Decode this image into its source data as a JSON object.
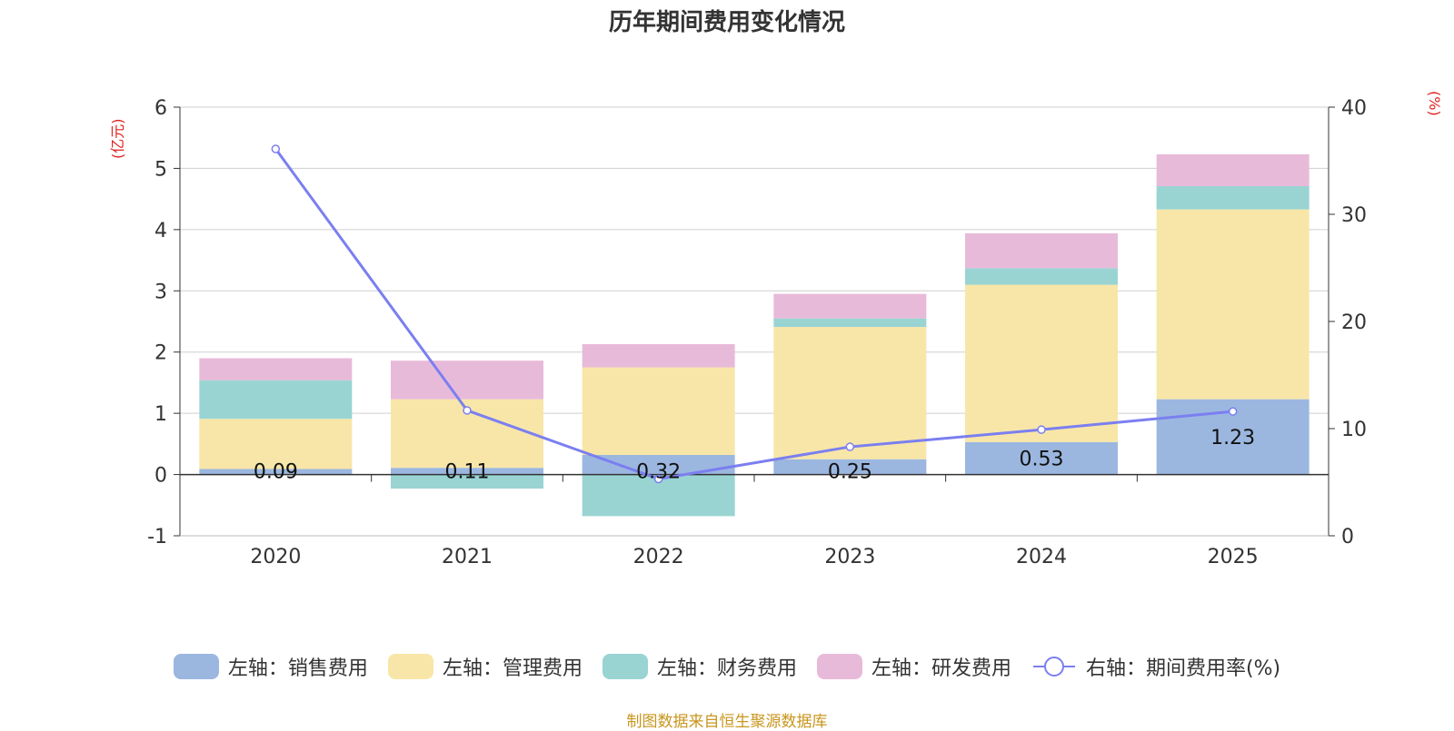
{
  "colors": {
    "sales": "#9bb7e0",
    "admin": "#f8e6a8",
    "finance": "#99d4d3",
    "rd": "#e8bad9",
    "rate": "#7b7ff0",
    "axis_unit": "#e02020",
    "footer": "#c8961e",
    "grid": "#cfcfcf"
  },
  "chart_data": {
    "type": "bar",
    "stacked": true,
    "title": "历年期间费用变化情况",
    "left_axis_unit": "(亿元)",
    "right_axis_unit": "(%)",
    "categories": [
      "2020",
      "2021",
      "2022",
      "2023",
      "2024",
      "2025"
    ],
    "ylim_left": [
      -1,
      6
    ],
    "yticks_left": [
      -1,
      0,
      1,
      2,
      3,
      4,
      5,
      6
    ],
    "ylim_right": [
      0,
      40
    ],
    "yticks_right": [
      0,
      10,
      20,
      30,
      40
    ],
    "series": [
      {
        "key": "sales",
        "name": "左轴：销售费用",
        "axis": "left",
        "values": [
          0.09,
          0.11,
          0.32,
          0.25,
          0.53,
          1.23
        ],
        "labels": [
          "0.09",
          "0.11",
          "0.32",
          "0.25",
          "0.53",
          "1.23"
        ]
      },
      {
        "key": "admin",
        "name": "左轴：管理费用",
        "axis": "left",
        "values": [
          0.82,
          1.12,
          1.43,
          2.16,
          2.57,
          3.1
        ]
      },
      {
        "key": "finance",
        "name": "左轴：财务费用",
        "axis": "left",
        "values": [
          0.63,
          -0.23,
          -0.68,
          0.14,
          0.27,
          0.38
        ]
      },
      {
        "key": "rd",
        "name": "左轴：研发费用",
        "axis": "left",
        "values": [
          0.36,
          0.63,
          0.38,
          0.4,
          0.57,
          0.52
        ]
      },
      {
        "key": "rate",
        "name": "右轴：期间费用率(%)",
        "axis": "right",
        "type": "line",
        "values": [
          36.1,
          11.7,
          5.3,
          8.3,
          9.9,
          11.6
        ]
      }
    ]
  },
  "footer": "制图数据来自恒生聚源数据库"
}
